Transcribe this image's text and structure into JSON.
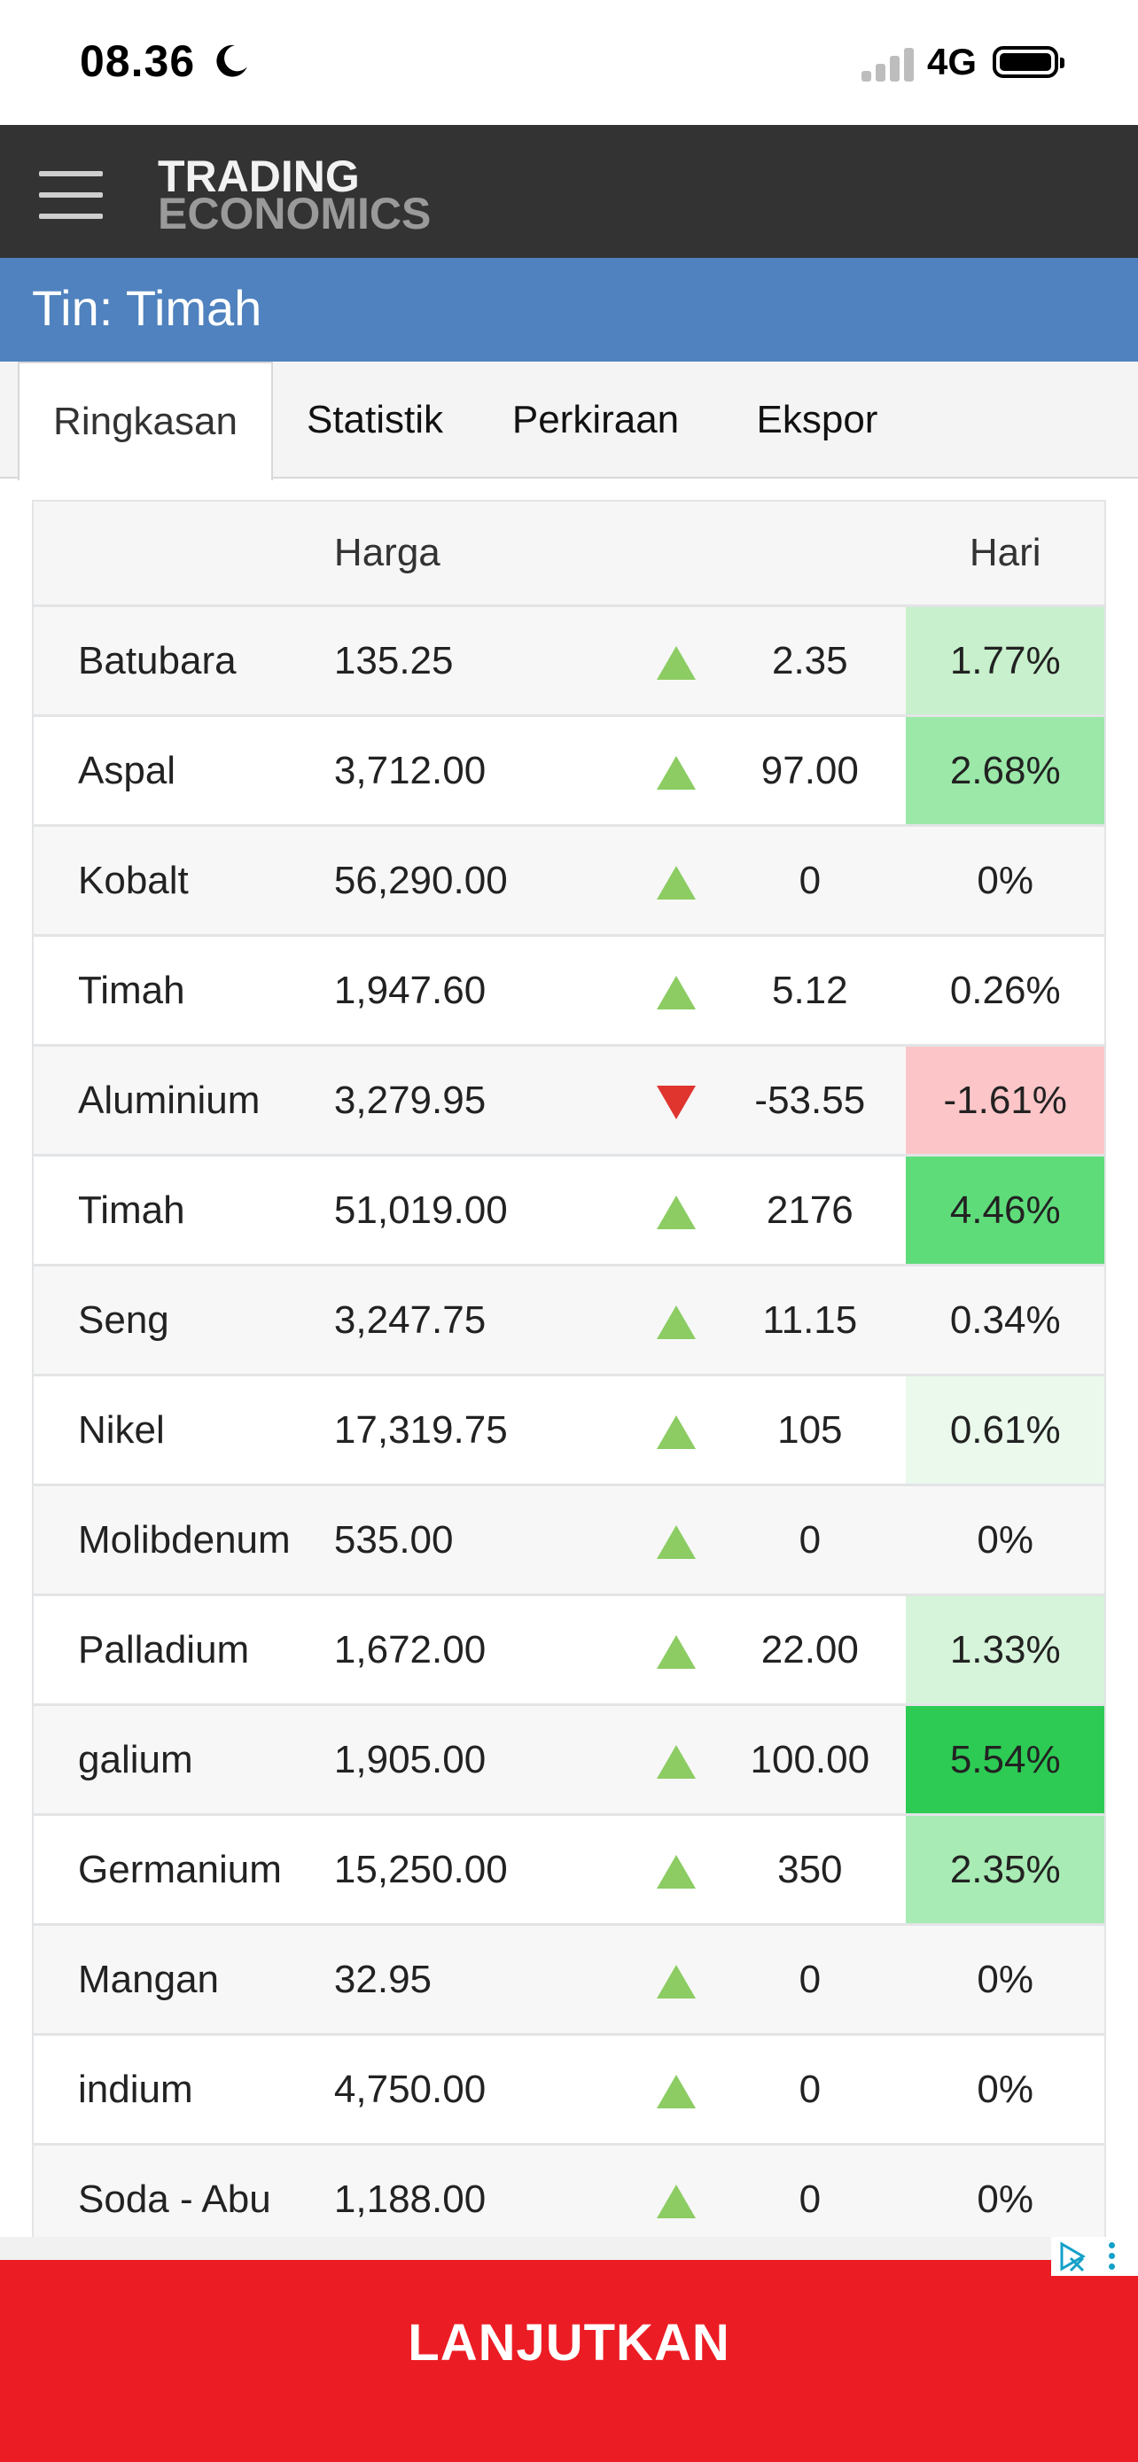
{
  "status_bar": {
    "time": "08.36",
    "network": "4G"
  },
  "header": {
    "logo_line1": "TRADING",
    "logo_line2": "ECONOMICS"
  },
  "page_title": "Tin: Timah",
  "tabs": [
    {
      "label": "Ringkasan",
      "active": true
    },
    {
      "label": "Statistik",
      "active": false
    },
    {
      "label": "Perkiraan",
      "active": false
    },
    {
      "label": "Ekspor",
      "active": false
    }
  ],
  "table": {
    "headers": {
      "name": "",
      "price": "Harga",
      "arrow": "",
      "change": "",
      "pct": "Hari"
    },
    "rows": [
      {
        "name": "Batubara",
        "price": "135.25",
        "dir": "up",
        "change": "2.35",
        "pct": "1.77%",
        "pct_bg": "#c8f0cc"
      },
      {
        "name": "Aspal",
        "price": "3,712.00",
        "dir": "up",
        "change": "97.00",
        "pct": "2.68%",
        "pct_bg": "#9be8a9"
      },
      {
        "name": "Kobalt",
        "price": "56,290.00",
        "dir": "up",
        "change": "0",
        "pct": "0%",
        "pct_bg": ""
      },
      {
        "name": "Timah",
        "price": "1,947.60",
        "dir": "up",
        "change": "5.12",
        "pct": "0.26%",
        "pct_bg": ""
      },
      {
        "name": "Aluminium",
        "price": "3,279.95",
        "dir": "down",
        "change": "-53.55",
        "pct": "-1.61%",
        "pct_bg": "#fcc6c8"
      },
      {
        "name": "Timah",
        "price": "51,019.00",
        "dir": "up",
        "change": "2176",
        "pct": "4.46%",
        "pct_bg": "#5fdc7a"
      },
      {
        "name": "Seng",
        "price": "3,247.75",
        "dir": "up",
        "change": "11.15",
        "pct": "0.34%",
        "pct_bg": ""
      },
      {
        "name": "Nikel",
        "price": "17,319.75",
        "dir": "up",
        "change": "105",
        "pct": "0.61%",
        "pct_bg": "#eaf9ec"
      },
      {
        "name": "Molibdenum",
        "price": "535.00",
        "dir": "up",
        "change": "0",
        "pct": "0%",
        "pct_bg": ""
      },
      {
        "name": "Palladium",
        "price": "1,672.00",
        "dir": "up",
        "change": "22.00",
        "pct": "1.33%",
        "pct_bg": "#d6f4da"
      },
      {
        "name": "galium",
        "price": "1,905.00",
        "dir": "up",
        "change": "100.00",
        "pct": "5.54%",
        "pct_bg": "#2dcb54"
      },
      {
        "name": "Germanium",
        "price": "15,250.00",
        "dir": "up",
        "change": "350",
        "pct": "2.35%",
        "pct_bg": "#a8ebb4"
      },
      {
        "name": "Mangan",
        "price": "32.95",
        "dir": "up",
        "change": "0",
        "pct": "0%",
        "pct_bg": ""
      },
      {
        "name": "indium",
        "price": "4,750.00",
        "dir": "up",
        "change": "0",
        "pct": "0%",
        "pct_bg": ""
      },
      {
        "name": "Soda - Abu",
        "price": "1,188.00",
        "dir": "up",
        "change": "0",
        "pct": "0%",
        "pct_bg": ""
      }
    ]
  },
  "ad": {
    "button_label": "LANJUTKAN"
  },
  "icons": {
    "moon": "moon-icon",
    "signal": "cellular-signal-icon",
    "battery": "battery-icon",
    "menu": "hamburger-menu-icon",
    "arrow_up": "arrow-up-icon",
    "arrow_down": "arrow-down-icon",
    "ad_choices": "ad-choices-icon",
    "more": "more-vertical-icon"
  },
  "colors": {
    "header_bg": "#333333",
    "title_bg": "#4f82be",
    "up": "#8ccc63",
    "down": "#e0352f",
    "ad_bg": "#ec1c24"
  }
}
